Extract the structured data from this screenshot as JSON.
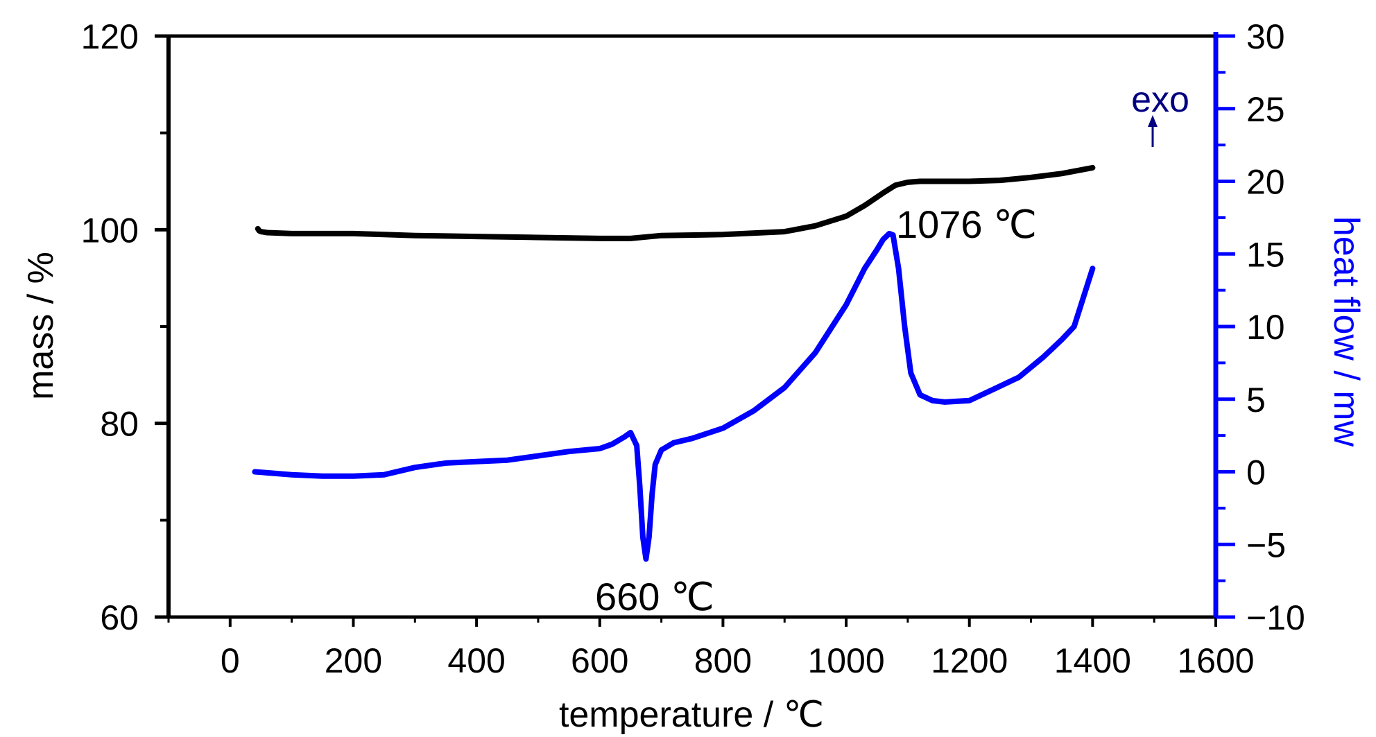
{
  "chart_data": {
    "type": "line",
    "xlabel": "temperature / ℃",
    "ylabel_left": "mass / %",
    "ylabel_right": "heat flow / mw",
    "xlim": [
      -100,
      1600
    ],
    "xticks": [
      0,
      200,
      400,
      600,
      800,
      1000,
      1200,
      1400,
      1600
    ],
    "ylim_left": [
      60,
      120
    ],
    "yticks_left": [
      60,
      80,
      100,
      120
    ],
    "ylim_right": [
      -10,
      30
    ],
    "yticks_right": [
      -10,
      -5,
      0,
      5,
      10,
      15,
      20,
      25,
      30
    ],
    "tick_labels_right": [
      "−10",
      "−5",
      "0",
      "5",
      "10",
      "15",
      "20",
      "25",
      "30"
    ],
    "colors": {
      "mass": "#000000",
      "heat_flow": "#0000ff",
      "exo": "#000080"
    },
    "exo_label": "exo",
    "annotations": [
      {
        "text": "1076 ℃",
        "x": 1076,
        "series": "heat_flow"
      },
      {
        "text": "660 ℃",
        "x": 660,
        "series": "heat_flow"
      }
    ],
    "series": [
      {
        "axis": "left",
        "x": [
          45,
          47,
          50,
          60,
          100,
          150,
          200,
          250,
          300,
          400,
          500,
          600,
          650,
          700,
          800,
          900,
          950,
          1000,
          1030,
          1060,
          1080,
          1100,
          1120,
          1150,
          1200,
          1250,
          1300,
          1350,
          1400
        ],
        "y": [
          100.1,
          99.9,
          99.8,
          99.7,
          99.6,
          99.6,
          99.6,
          99.5,
          99.4,
          99.3,
          99.2,
          99.1,
          99.1,
          99.4,
          99.5,
          99.8,
          100.4,
          101.4,
          102.5,
          103.8,
          104.6,
          104.9,
          105.0,
          105.0,
          105.0,
          105.1,
          105.4,
          105.8,
          106.4
        ]
      },
      {
        "axis": "right",
        "x": [
          40,
          100,
          150,
          200,
          250,
          300,
          350,
          400,
          450,
          500,
          550,
          600,
          620,
          640,
          650,
          660,
          665,
          670,
          675,
          680,
          685,
          690,
          700,
          720,
          750,
          800,
          850,
          900,
          950,
          1000,
          1030,
          1050,
          1060,
          1070,
          1076,
          1085,
          1095,
          1105,
          1120,
          1140,
          1160,
          1200,
          1240,
          1280,
          1320,
          1350,
          1370,
          1400
        ],
        "y": [
          0.0,
          -0.2,
          -0.3,
          -0.3,
          -0.2,
          0.3,
          0.6,
          0.7,
          0.8,
          1.1,
          1.4,
          1.6,
          1.9,
          2.4,
          2.7,
          1.8,
          -1.0,
          -4.5,
          -6.0,
          -4.5,
          -1.5,
          0.5,
          1.5,
          2.0,
          2.3,
          3.0,
          4.2,
          5.8,
          8.2,
          11.5,
          14.0,
          15.3,
          16.0,
          16.4,
          16.3,
          14.0,
          10.0,
          6.8,
          5.3,
          4.9,
          4.8,
          4.9,
          5.7,
          6.5,
          7.9,
          9.1,
          10.0,
          14.0
        ]
      }
    ]
  }
}
